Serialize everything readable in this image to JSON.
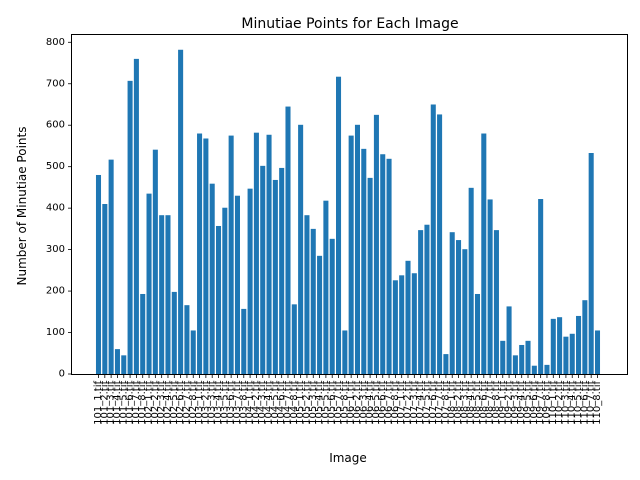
{
  "chart_data": {
    "type": "bar",
    "title": "Minutiae Points for Each Image",
    "xlabel": "Image",
    "ylabel": "Number of Minutiae Points",
    "ylim": [
      0,
      820
    ],
    "yticks": [
      0,
      100,
      200,
      300,
      400,
      500,
      600,
      700,
      800
    ],
    "grid": false,
    "bar_color": "#1f77b4",
    "categories": [
      "101_1.tif",
      "101_2.tif",
      "101_3.tif",
      "101_4.tif",
      "101_5.tif",
      "101_6.tif",
      "101_7.tif",
      "101_8.tif",
      "102_1.tif",
      "102_2.tif",
      "102_3.tif",
      "102_4.tif",
      "102_5.tif",
      "102_6.tif",
      "102_7.tif",
      "102_8.tif",
      "103_1.tif",
      "103_2.tif",
      "103_3.tif",
      "103_4.tif",
      "103_5.tif",
      "103_6.tif",
      "103_7.tif",
      "103_8.tif",
      "104_1.tif",
      "104_2.tif",
      "104_3.tif",
      "104_4.tif",
      "104_5.tif",
      "104_6.tif",
      "104_7.tif",
      "104_8.tif",
      "105_1.tif",
      "105_2.tif",
      "105_3.tif",
      "105_4.tif",
      "105_5.tif",
      "105_6.tif",
      "105_7.tif",
      "105_8.tif",
      "106_1.tif",
      "106_2.tif",
      "106_3.tif",
      "106_4.tif",
      "106_5.tif",
      "106_6.tif",
      "106_7.tif",
      "106_8.tif",
      "107_1.tif",
      "107_2.tif",
      "107_3.tif",
      "107_4.tif",
      "107_5.tif",
      "107_6.tif",
      "107_7.tif",
      "107_8.tif",
      "108_1.tif",
      "108_2.tif",
      "108_3.tif",
      "108_4.tif",
      "108_5.tif",
      "108_6.tif",
      "108_7.tif",
      "108_8.tif",
      "109_1.tif",
      "109_2.tif",
      "109_3.tif",
      "109_4.tif",
      "109_5.tif",
      "109_6.tif",
      "109_7.tif",
      "109_8.tif",
      "110_1.tif",
      "110_2.tif",
      "110_3.tif",
      "110_4.tif",
      "110_5.tif",
      "110_6.tif",
      "110_7.tif",
      "110_8.tif"
    ],
    "values": [
      480,
      410,
      517,
      60,
      45,
      707,
      760,
      193,
      435,
      541,
      383,
      383,
      198,
      782,
      166,
      105,
      580,
      568,
      459,
      357,
      401,
      575,
      430,
      157,
      447,
      582,
      502,
      577,
      468,
      497,
      645,
      168,
      601,
      383,
      350,
      285,
      418,
      326,
      717,
      105,
      575,
      601,
      543,
      473,
      625,
      530,
      519,
      226,
      238,
      273,
      243,
      347,
      360,
      650,
      626,
      48,
      342,
      323,
      301,
      449,
      193,
      580,
      421,
      347,
      80,
      163,
      45,
      70,
      80,
      20,
      422,
      22,
      133,
      137,
      90,
      97,
      140,
      178,
      533,
      105
    ]
  }
}
